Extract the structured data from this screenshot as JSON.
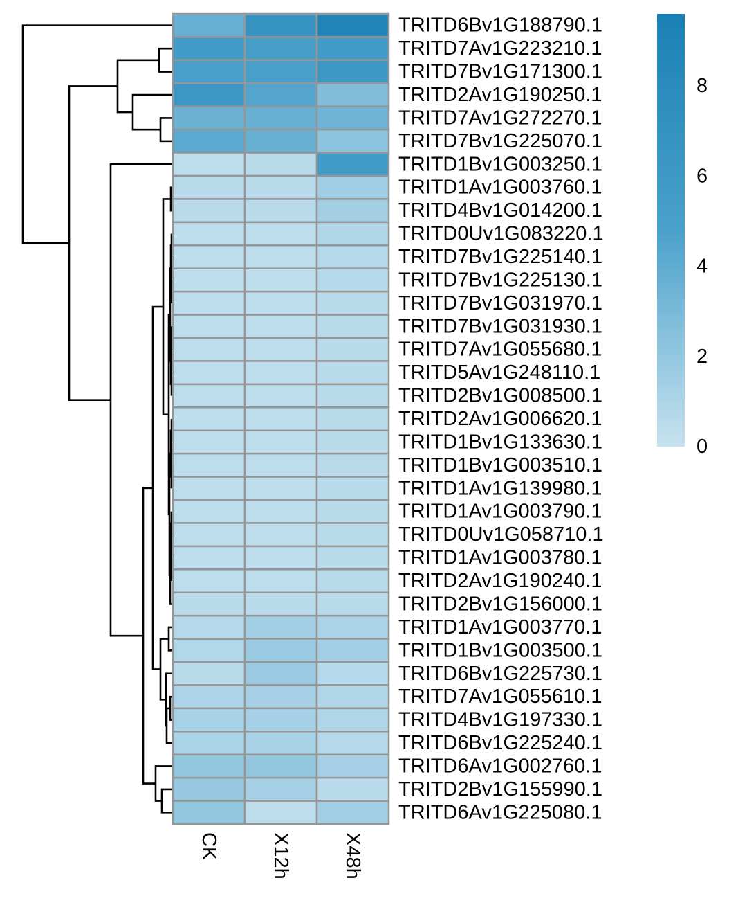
{
  "chart_data": {
    "type": "heatmap",
    "columns": [
      "CK",
      "X12h",
      "X48h"
    ],
    "rows": [
      "TRITD6Bv1G188790.1",
      "TRITD7Av1G223210.1",
      "TRITD7Bv1G171300.1",
      "TRITD2Av1G190250.1",
      "TRITD7Av1G272270.1",
      "TRITD7Bv1G225070.1",
      "TRITD1Bv1G003250.1",
      "TRITD1Av1G003760.1",
      "TRITD4Bv1G014200.1",
      "TRITD0Uv1G083220.1",
      "TRITD7Bv1G225140.1",
      "TRITD7Bv1G225130.1",
      "TRITD7Bv1G031970.1",
      "TRITD7Bv1G031930.1",
      "TRITD7Av1G055680.1",
      "TRITD5Av1G248110.1",
      "TRITD2Bv1G008500.1",
      "TRITD2Av1G006620.1",
      "TRITD1Bv1G133630.1",
      "TRITD1Bv1G003510.1",
      "TRITD1Av1G139980.1",
      "TRITD1Av1G003790.1",
      "TRITD0Uv1G058710.1",
      "TRITD1Av1G003780.1",
      "TRITD2Av1G190240.1",
      "TRITD2Bv1G156000.1",
      "TRITD1Av1G003770.1",
      "TRITD1Bv1G003500.1",
      "TRITD6Bv1G225730.1",
      "TRITD7Av1G055610.1",
      "TRITD4Bv1G197330.1",
      "TRITD6Bv1G225240.1",
      "TRITD6Av1G002760.1",
      "TRITD2Bv1G155990.1",
      "TRITD6Av1G225080.1"
    ],
    "values": [
      [
        3.8,
        6.8,
        9.0
      ],
      [
        5.6,
        5.4,
        5.6
      ],
      [
        4.9,
        5.1,
        6.1
      ],
      [
        6.3,
        4.5,
        2.7
      ],
      [
        3.6,
        3.7,
        3.4
      ],
      [
        4.2,
        3.7,
        2.3
      ],
      [
        0.3,
        0.6,
        5.7
      ],
      [
        0.5,
        0.6,
        1.5
      ],
      [
        0.5,
        0.5,
        1.4
      ],
      [
        0.4,
        0.4,
        0.9
      ],
      [
        0.3,
        0.3,
        0.7
      ],
      [
        0.3,
        0.3,
        0.7
      ],
      [
        0.3,
        0.3,
        0.6
      ],
      [
        0.3,
        0.3,
        0.6
      ],
      [
        0.3,
        0.3,
        0.5
      ],
      [
        0.3,
        0.3,
        0.5
      ],
      [
        0.3,
        0.3,
        0.5
      ],
      [
        0.3,
        0.3,
        0.5
      ],
      [
        0.4,
        0.4,
        0.5
      ],
      [
        0.4,
        0.4,
        0.6
      ],
      [
        0.4,
        0.4,
        0.6
      ],
      [
        0.4,
        0.4,
        0.6
      ],
      [
        0.4,
        0.4,
        0.6
      ],
      [
        0.4,
        0.4,
        0.6
      ],
      [
        0.4,
        0.4,
        0.6
      ],
      [
        0.5,
        0.5,
        0.6
      ],
      [
        0.7,
        1.4,
        1.1
      ],
      [
        0.8,
        1.7,
        1.4
      ],
      [
        0.6,
        1.7,
        0.7
      ],
      [
        1.0,
        1.3,
        0.9
      ],
      [
        1.2,
        1.3,
        0.9
      ],
      [
        1.1,
        1.2,
        0.7
      ],
      [
        2.1,
        2.0,
        1.3
      ],
      [
        1.9,
        1.3,
        0.5
      ],
      [
        2.1,
        0.4,
        1.4
      ]
    ],
    "legend": {
      "min": 0,
      "max": 9.6,
      "ticks": [
        "0",
        "2",
        "4",
        "6",
        "8"
      ],
      "colors": [
        "#c7e2ef",
        "#4ba1cb",
        "#1a80b5"
      ]
    }
  }
}
